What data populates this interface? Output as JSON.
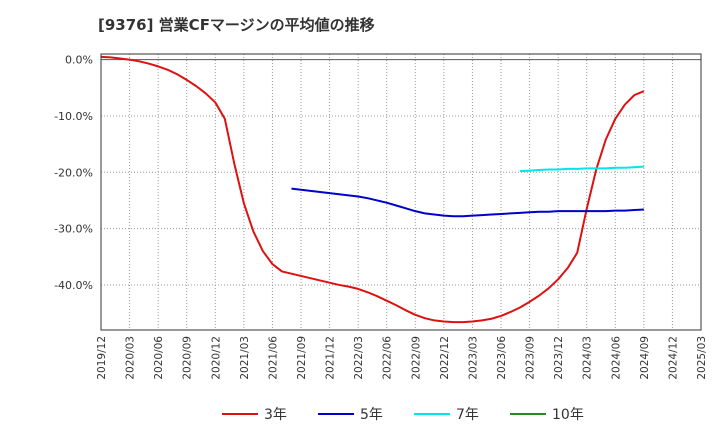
{
  "chart_data": {
    "type": "line",
    "title": "[9376]  営業CFマージンの平均値の推移",
    "xlabel": "",
    "ylabel": "",
    "x_ticks": [
      "2019/12",
      "2020/03",
      "2020/06",
      "2020/09",
      "2020/12",
      "2021/03",
      "2021/06",
      "2021/09",
      "2021/12",
      "2022/03",
      "2022/06",
      "2022/09",
      "2022/12",
      "2023/03",
      "2023/06",
      "2023/09",
      "2023/12",
      "2024/03",
      "2024/06",
      "2024/09",
      "2024/12",
      "2025/03"
    ],
    "y_ticks": [
      0,
      -10,
      -20,
      -30,
      -40
    ],
    "y_tick_labels": [
      "0.0%",
      "-10.0%",
      "-20.0%",
      "-30.0%",
      "-40.0%"
    ],
    "ylim": [
      -48,
      1
    ],
    "grid": true,
    "legend_position": "bottom",
    "series": [
      {
        "name": "3年",
        "color": "#dd1111",
        "points": [
          [
            "2019/12",
            0.5
          ],
          [
            "2020/01",
            0.4
          ],
          [
            "2020/02",
            0.2
          ],
          [
            "2020/03",
            0.0
          ],
          [
            "2020/04",
            -0.3
          ],
          [
            "2020/05",
            -0.7
          ],
          [
            "2020/06",
            -1.2
          ],
          [
            "2020/07",
            -1.8
          ],
          [
            "2020/08",
            -2.6
          ],
          [
            "2020/09",
            -3.6
          ],
          [
            "2020/10",
            -4.7
          ],
          [
            "2020/11",
            -6.0
          ],
          [
            "2020/12",
            -7.6
          ],
          [
            "2021/01",
            -10.5
          ],
          [
            "2021/02",
            -18.5
          ],
          [
            "2021/03",
            -25.5
          ],
          [
            "2021/04",
            -30.5
          ],
          [
            "2021/05",
            -34.0
          ],
          [
            "2021/06",
            -36.3
          ],
          [
            "2021/07",
            -37.6
          ],
          [
            "2021/08",
            -38.0
          ],
          [
            "2021/09",
            -38.4
          ],
          [
            "2021/10",
            -38.8
          ],
          [
            "2021/11",
            -39.2
          ],
          [
            "2021/12",
            -39.6
          ],
          [
            "2022/01",
            -40.0
          ],
          [
            "2022/02",
            -40.3
          ],
          [
            "2022/03",
            -40.7
          ],
          [
            "2022/04",
            -41.3
          ],
          [
            "2022/05",
            -42.0
          ],
          [
            "2022/06",
            -42.8
          ],
          [
            "2022/07",
            -43.6
          ],
          [
            "2022/08",
            -44.5
          ],
          [
            "2022/09",
            -45.3
          ],
          [
            "2022/10",
            -45.9
          ],
          [
            "2022/11",
            -46.3
          ],
          [
            "2022/12",
            -46.5
          ],
          [
            "2023/01",
            -46.6
          ],
          [
            "2023/02",
            -46.6
          ],
          [
            "2023/03",
            -46.5
          ],
          [
            "2023/04",
            -46.3
          ],
          [
            "2023/05",
            -46.0
          ],
          [
            "2023/06",
            -45.5
          ],
          [
            "2023/07",
            -44.8
          ],
          [
            "2023/08",
            -44.0
          ],
          [
            "2023/09",
            -43.0
          ],
          [
            "2023/10",
            -41.9
          ],
          [
            "2023/11",
            -40.6
          ],
          [
            "2023/12",
            -39.0
          ],
          [
            "2024/01",
            -37.0
          ],
          [
            "2024/02",
            -34.3
          ],
          [
            "2024/03",
            -26.5
          ],
          [
            "2024/04",
            -19.5
          ],
          [
            "2024/05",
            -14.2
          ],
          [
            "2024/06",
            -10.5
          ],
          [
            "2024/07",
            -8.0
          ],
          [
            "2024/08",
            -6.3
          ],
          [
            "2024/09",
            -5.6
          ]
        ]
      },
      {
        "name": "5年",
        "color": "#0000cc",
        "points": [
          [
            "2021/08",
            -22.9
          ],
          [
            "2021/09",
            -23.1
          ],
          [
            "2021/10",
            -23.3
          ],
          [
            "2021/11",
            -23.5
          ],
          [
            "2021/12",
            -23.7
          ],
          [
            "2022/01",
            -23.9
          ],
          [
            "2022/02",
            -24.1
          ],
          [
            "2022/03",
            -24.3
          ],
          [
            "2022/04",
            -24.6
          ],
          [
            "2022/05",
            -25.0
          ],
          [
            "2022/06",
            -25.4
          ],
          [
            "2022/07",
            -25.9
          ],
          [
            "2022/08",
            -26.4
          ],
          [
            "2022/09",
            -26.9
          ],
          [
            "2022/10",
            -27.3
          ],
          [
            "2022/11",
            -27.5
          ],
          [
            "2022/12",
            -27.7
          ],
          [
            "2023/01",
            -27.8
          ],
          [
            "2023/02",
            -27.8
          ],
          [
            "2023/03",
            -27.7
          ],
          [
            "2023/04",
            -27.6
          ],
          [
            "2023/05",
            -27.5
          ],
          [
            "2023/06",
            -27.4
          ],
          [
            "2023/07",
            -27.3
          ],
          [
            "2023/08",
            -27.2
          ],
          [
            "2023/09",
            -27.1
          ],
          [
            "2023/10",
            -27.0
          ],
          [
            "2023/11",
            -27.0
          ],
          [
            "2023/12",
            -26.9
          ],
          [
            "2024/01",
            -26.9
          ],
          [
            "2024/02",
            -26.9
          ],
          [
            "2024/03",
            -26.9
          ],
          [
            "2024/04",
            -26.9
          ],
          [
            "2024/05",
            -26.9
          ],
          [
            "2024/06",
            -26.8
          ],
          [
            "2024/07",
            -26.8
          ],
          [
            "2024/08",
            -26.7
          ],
          [
            "2024/09",
            -26.6
          ]
        ]
      },
      {
        "name": "7年",
        "color": "#00e5ee",
        "points": [
          [
            "2023/08",
            -19.8
          ],
          [
            "2023/09",
            -19.7
          ],
          [
            "2023/10",
            -19.6
          ],
          [
            "2023/11",
            -19.5
          ],
          [
            "2023/12",
            -19.5
          ],
          [
            "2024/01",
            -19.4
          ],
          [
            "2024/02",
            -19.4
          ],
          [
            "2024/03",
            -19.3
          ],
          [
            "2024/04",
            -19.3
          ],
          [
            "2024/05",
            -19.3
          ],
          [
            "2024/06",
            -19.2
          ],
          [
            "2024/07",
            -19.2
          ],
          [
            "2024/08",
            -19.1
          ],
          [
            "2024/09",
            -19.0
          ]
        ]
      },
      {
        "name": "10年",
        "color": "#228b22",
        "points": []
      }
    ]
  }
}
